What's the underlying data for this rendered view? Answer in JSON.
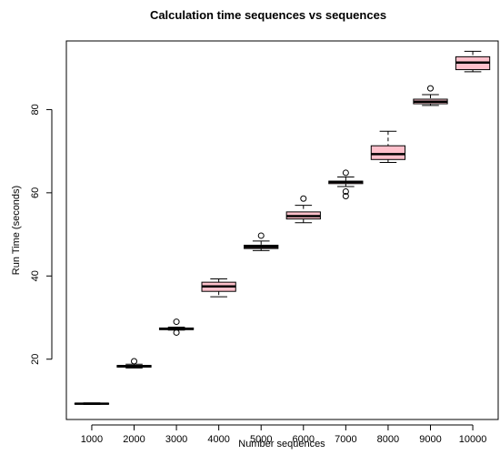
{
  "chart_data": {
    "type": "boxplot",
    "title": "Calculation time sequences vs sequences",
    "xlabel": "Number sequences",
    "ylabel": "Run Time (seconds)",
    "categories": [
      "1000",
      "2000",
      "3000",
      "4000",
      "5000",
      "6000",
      "7000",
      "8000",
      "9000",
      "10000"
    ],
    "ylim": [
      5.5,
      96.5
    ],
    "yticks": [
      20,
      40,
      60,
      80
    ],
    "box_fill": "#ffc0cb",
    "boxes": [
      {
        "category": "1000",
        "min": 9.1,
        "q1": 9.2,
        "median": 9.3,
        "q3": 9.4,
        "max": 9.5,
        "outliers": []
      },
      {
        "category": "2000",
        "min": 17.9,
        "q1": 18.1,
        "median": 18.3,
        "q3": 18.5,
        "max": 18.8,
        "outliers": [
          19.5
        ]
      },
      {
        "category": "3000",
        "min": 27.0,
        "q1": 27.1,
        "median": 27.3,
        "q3": 27.5,
        "max": 27.7,
        "outliers": [
          29.0,
          26.4
        ]
      },
      {
        "category": "4000",
        "min": 35.0,
        "q1": 36.3,
        "median": 37.5,
        "q3": 38.5,
        "max": 39.3,
        "outliers": []
      },
      {
        "category": "5000",
        "min": 46.1,
        "q1": 46.6,
        "median": 47.0,
        "q3": 47.4,
        "max": 48.4,
        "outliers": [
          49.7
        ]
      },
      {
        "category": "6000",
        "min": 52.8,
        "q1": 53.7,
        "median": 54.4,
        "q3": 55.4,
        "max": 57.0,
        "outliers": [
          58.6
        ]
      },
      {
        "category": "7000",
        "min": 61.5,
        "q1": 62.2,
        "median": 62.6,
        "q3": 62.8,
        "max": 63.8,
        "outliers": [
          64.8,
          60.3,
          59.2
        ]
      },
      {
        "category": "8000",
        "min": 67.3,
        "q1": 68.0,
        "median": 69.3,
        "q3": 71.3,
        "max": 74.8,
        "outliers": []
      },
      {
        "category": "9000",
        "min": 81.0,
        "q1": 81.4,
        "median": 81.9,
        "q3": 82.5,
        "max": 83.6,
        "outliers": [
          85.1
        ]
      },
      {
        "category": "10000",
        "min": 89.1,
        "q1": 89.6,
        "median": 91.3,
        "q3": 92.7,
        "max": 94.0,
        "outliers": []
      }
    ]
  }
}
